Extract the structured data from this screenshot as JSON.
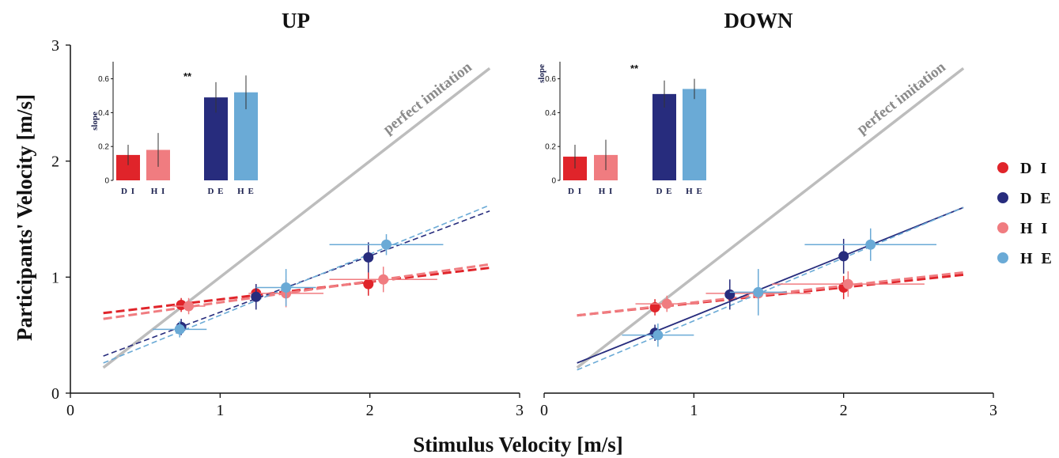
{
  "figure": {
    "xlabel": "Stimulus Velocity [m/s]",
    "ylabel": "Participants' Velocity [m/s]",
    "inset_ylabel": "slope",
    "perfect_label": "perfect imitation"
  },
  "legend": [
    {
      "name": "D I",
      "color": "#e0242a"
    },
    {
      "name": "D E",
      "color": "#272c7d"
    },
    {
      "name": "H I",
      "color": "#f07c80"
    },
    {
      "name": "H E",
      "color": "#6aaad6"
    }
  ],
  "chart_data": [
    {
      "type": "scatter",
      "title": "UP",
      "xlabel": "Stimulus Velocity [m/s]",
      "ylabel": "Participants' Velocity [m/s]",
      "xlim": [
        0,
        3
      ],
      "ylim": [
        0,
        3
      ],
      "xticks": [
        "0",
        "1",
        "2",
        "3"
      ],
      "yticks": [
        "0",
        "1",
        "2",
        "3"
      ],
      "reference_line": {
        "label": "perfect imitation",
        "x": [
          0.22,
          2.8
        ],
        "y": [
          0.22,
          2.8
        ],
        "color": "#bdbdbd"
      },
      "series": [
        {
          "name": "D I",
          "color": "#e0242a",
          "style": "dashed-bold",
          "points": [
            {
              "x": 0.74,
              "y": 0.76,
              "xerr": 0.0,
              "yerr": 0.06
            },
            {
              "x": 1.24,
              "y": 0.86,
              "xerr": 0.0,
              "yerr": 0.08
            },
            {
              "x": 1.99,
              "y": 0.94,
              "xerr": 0.0,
              "yerr": 0.1
            }
          ],
          "fit": {
            "x": [
              0.22,
              2.8
            ],
            "y": [
              0.69,
              1.08
            ]
          }
        },
        {
          "name": "H I",
          "color": "#f07c80",
          "style": "dashed-bold",
          "points": [
            {
              "x": 0.79,
              "y": 0.75,
              "xerr": 0.11,
              "yerr": 0.07
            },
            {
              "x": 1.44,
              "y": 0.86,
              "xerr": 0.25,
              "yerr": 0.12
            },
            {
              "x": 2.09,
              "y": 0.98,
              "xerr": 0.36,
              "yerr": 0.11
            }
          ],
          "fit": {
            "x": [
              0.22,
              2.8
            ],
            "y": [
              0.64,
              1.11
            ]
          }
        },
        {
          "name": "D E",
          "color": "#272c7d",
          "style": "dashed-thin",
          "points": [
            {
              "x": 0.74,
              "y": 0.57,
              "xerr": 0.0,
              "yerr": 0.07
            },
            {
              "x": 1.24,
              "y": 0.83,
              "xerr": 0.0,
              "yerr": 0.11
            },
            {
              "x": 1.99,
              "y": 1.17,
              "xerr": 0.0,
              "yerr": 0.13
            }
          ],
          "fit": {
            "x": [
              0.22,
              2.8
            ],
            "y": [
              0.32,
              1.57
            ]
          }
        },
        {
          "name": "H E",
          "color": "#6aaad6",
          "style": "dashed-thin",
          "points": [
            {
              "x": 0.73,
              "y": 0.55,
              "xerr": 0.18,
              "yerr": 0.07
            },
            {
              "x": 1.44,
              "y": 0.91,
              "xerr": 0.2,
              "yerr": 0.16
            },
            {
              "x": 2.11,
              "y": 1.28,
              "xerr": 0.38,
              "yerr": 0.09
            }
          ],
          "fit": {
            "x": [
              0.22,
              2.8
            ],
            "y": [
              0.26,
              1.62
            ]
          }
        }
      ],
      "inset": {
        "type": "bar",
        "ylabel": "slope",
        "categories": [
          "D I",
          "H I",
          "D E",
          "H E"
        ],
        "values": [
          0.15,
          0.18,
          0.49,
          0.52
        ],
        "errors": [
          0.06,
          0.1,
          0.09,
          0.1
        ],
        "colors": [
          "#e0242a",
          "#f07c80",
          "#272c7d",
          "#6aaad6"
        ],
        "yticks": [
          "0",
          "0.2",
          "0.4",
          "0.6"
        ],
        "ylim": [
          0,
          0.7
        ],
        "significance": "**"
      }
    },
    {
      "type": "scatter",
      "title": "DOWN",
      "xlabel": "Stimulus Velocity [m/s]",
      "ylabel": "Participants' Velocity [m/s]",
      "xlim": [
        0,
        3
      ],
      "ylim": [
        0,
        3
      ],
      "xticks": [
        "0",
        "1",
        "2",
        "3"
      ],
      "yticks": [],
      "reference_line": {
        "label": "perfect imitation",
        "x": [
          0.22,
          2.8
        ],
        "y": [
          0.22,
          2.8
        ],
        "color": "#bdbdbd"
      },
      "series": [
        {
          "name": "D I",
          "color": "#e0242a",
          "style": "dashed-bold",
          "points": [
            {
              "x": 0.74,
              "y": 0.74,
              "xerr": 0.0,
              "yerr": 0.07
            },
            {
              "x": 2.0,
              "y": 0.91,
              "xerr": 0.0,
              "yerr": 0.1
            }
          ],
          "fit": {
            "x": [
              0.22,
              2.8
            ],
            "y": [
              0.67,
              1.02
            ]
          }
        },
        {
          "name": "H I",
          "color": "#f07c80",
          "style": "dashed-bold",
          "points": [
            {
              "x": 0.82,
              "y": 0.77,
              "xerr": 0.21,
              "yerr": 0.07
            },
            {
              "x": 1.43,
              "y": 0.86,
              "xerr": 0.35,
              "yerr": 0.12
            },
            {
              "x": 2.03,
              "y": 0.94,
              "xerr": 0.51,
              "yerr": 0.11
            }
          ],
          "fit": {
            "x": [
              0.22,
              2.8
            ],
            "y": [
              0.67,
              1.04
            ]
          }
        },
        {
          "name": "D E",
          "color": "#272c7d",
          "style": "solid-thin",
          "points": [
            {
              "x": 0.74,
              "y": 0.52,
              "xerr": 0.0,
              "yerr": 0.07
            },
            {
              "x": 1.24,
              "y": 0.85,
              "xerr": 0.0,
              "yerr": 0.13
            },
            {
              "x": 2.0,
              "y": 1.18,
              "xerr": 0.0,
              "yerr": 0.15
            }
          ],
          "fit": {
            "x": [
              0.22,
              2.8
            ],
            "y": [
              0.26,
              1.6
            ]
          }
        },
        {
          "name": "H E",
          "color": "#6aaad6",
          "style": "dashed-thin",
          "points": [
            {
              "x": 0.76,
              "y": 0.5,
              "xerr": 0.24,
              "yerr": 0.1
            },
            {
              "x": 1.43,
              "y": 0.87,
              "xerr": 0.19,
              "yerr": 0.2
            },
            {
              "x": 2.18,
              "y": 1.28,
              "xerr": 0.44,
              "yerr": 0.14
            }
          ],
          "fit": {
            "x": [
              0.22,
              2.8
            ],
            "y": [
              0.2,
              1.6
            ]
          }
        }
      ],
      "inset": {
        "type": "bar",
        "ylabel": "slope",
        "categories": [
          "D I",
          "H I",
          "D E",
          "H E"
        ],
        "values": [
          0.14,
          0.15,
          0.51,
          0.54
        ],
        "errors": [
          0.07,
          0.09,
          0.08,
          0.06
        ],
        "colors": [
          "#e0242a",
          "#f07c80",
          "#272c7d",
          "#6aaad6"
        ],
        "yticks": [
          "0",
          "0.2",
          "0.4",
          "0.6"
        ],
        "ylim": [
          0,
          0.7
        ],
        "significance": "**"
      }
    }
  ]
}
